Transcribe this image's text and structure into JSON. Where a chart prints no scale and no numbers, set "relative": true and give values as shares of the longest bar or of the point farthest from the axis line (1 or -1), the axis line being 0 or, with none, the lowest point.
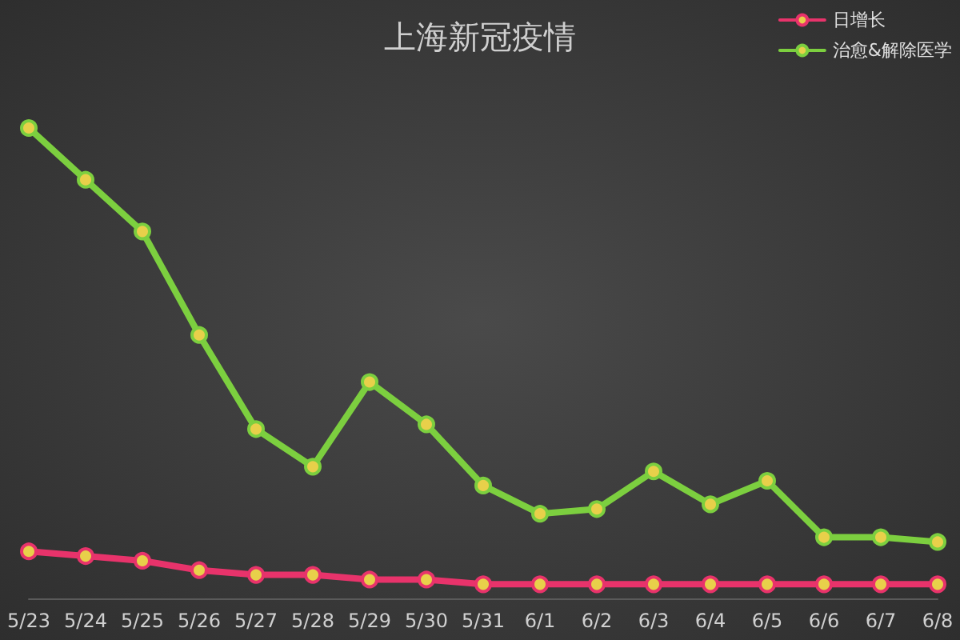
{
  "chart_data": {
    "type": "line",
    "title": "上海新冠疫情",
    "relative": true,
    "legend": "top right",
    "marker": "circle",
    "line_style": "solid",
    "categories": [
      "5/23",
      "5/24",
      "5/25",
      "5/26",
      "5/27",
      "5/28",
      "5/29",
      "5/30",
      "5/31",
      "6/1",
      "6/2",
      "6/3",
      "6/4",
      "6/5",
      "6/6",
      "6/7",
      "6/8"
    ],
    "series": [
      {
        "name": "日增长",
        "color": "#e8336b",
        "values": [
          0.1,
          0.09,
          0.08,
          0.06,
          0.05,
          0.05,
          0.04,
          0.04,
          0.03,
          0.03,
          0.03,
          0.03,
          0.03,
          0.03,
          0.03,
          0.03,
          0.03
        ]
      },
      {
        "name": "治愈&解除医学",
        "color": "#7ccf3f",
        "values": [
          1,
          0.89,
          0.78,
          0.56,
          0.36,
          0.28,
          0.46,
          0.37,
          0.24,
          0.18,
          0.19,
          0.27,
          0.2,
          0.25,
          0.13,
          0.13,
          0.12
        ]
      }
    ]
  }
}
